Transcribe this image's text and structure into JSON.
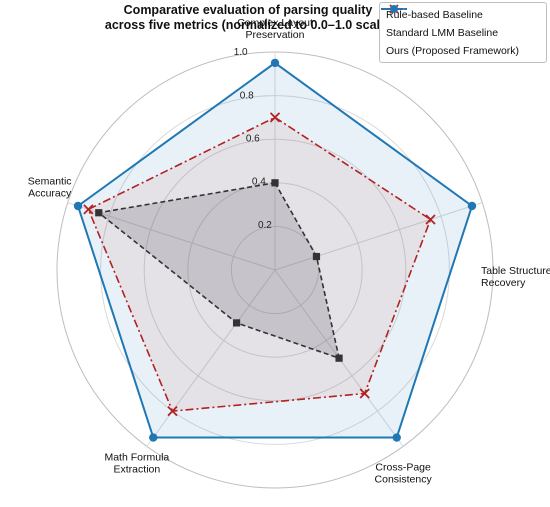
{
  "chart_title": {
    "line1": "Comparative evaluation of parsing quality",
    "line2": "across five metrics (normalized to 0.0–1.0 scale)"
  },
  "chart_data": {
    "type": "radar",
    "title": "Comparative evaluation of parsing quality across five metrics (normalized to 0.0–1.0 scale)",
    "axes": [
      {
        "lines": [
          "Complex Layout",
          "Preservation"
        ]
      },
      {
        "lines": [
          "Table Structure",
          "Recovery"
        ]
      },
      {
        "lines": [
          "Cross-Page",
          "Consistency"
        ]
      },
      {
        "lines": [
          "Math Formula",
          "Extraction"
        ]
      },
      {
        "lines": [
          "Semantic",
          "Accuracy"
        ]
      }
    ],
    "rlim": [
      0,
      1.0
    ],
    "ticks": [
      0.2,
      0.4,
      0.6,
      0.8,
      1.0
    ],
    "tick_labels": [
      "0.2",
      "0.4",
      "0.6",
      "0.8",
      "1.0"
    ],
    "grid": true,
    "legend_position": "top-right",
    "series": [
      {
        "name": "Rule-based Baseline",
        "color": "#333333",
        "marker": "square",
        "line": "dashed",
        "values": [
          0.4,
          0.2,
          0.5,
          0.3,
          0.85
        ]
      },
      {
        "name": "Standard LMM Baseline",
        "color": "#b22222",
        "marker": "x",
        "line": "dashdot",
        "values": [
          0.7,
          0.75,
          0.7,
          0.8,
          0.9
        ]
      },
      {
        "name": "Ours (Proposed Framework)",
        "color": "#1f77b4",
        "marker": "circle",
        "line": "solid",
        "values": [
          0.95,
          0.95,
          0.95,
          0.95,
          0.95
        ]
      }
    ]
  }
}
